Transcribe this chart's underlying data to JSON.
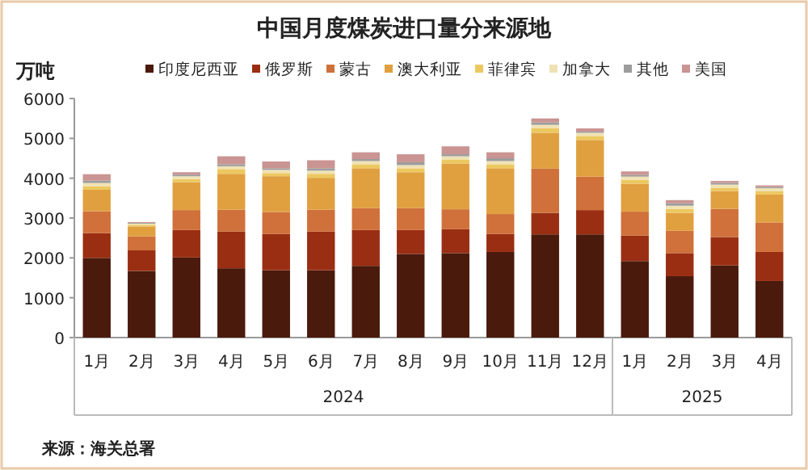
{
  "chart_data": {
    "type": "bar",
    "stacked": true,
    "title": "中国月度煤炭进口量分来源地",
    "ylabel": "万吨",
    "categories": [
      "1月",
      "2月",
      "3月",
      "4月",
      "5月",
      "6月",
      "7月",
      "8月",
      "9月",
      "10月",
      "11月",
      "12月",
      "1月",
      "2月",
      "3月",
      "4月"
    ],
    "series": [
      {
        "name": "印度尼西亚",
        "color": "#4a1a0c",
        "values": [
          2000,
          1670,
          2010,
          1740,
          1690,
          1690,
          1800,
          2100,
          2120,
          2150,
          2590,
          2590,
          1920,
          1540,
          1810,
          1420
        ]
      },
      {
        "name": "俄罗斯",
        "color": "#9a2e12",
        "values": [
          620,
          520,
          690,
          920,
          910,
          970,
          900,
          600,
          600,
          450,
          540,
          610,
          640,
          580,
          710,
          730
        ]
      },
      {
        "name": "蒙古",
        "color": "#d0703a",
        "values": [
          550,
          350,
          500,
          550,
          550,
          550,
          550,
          550,
          500,
          500,
          1110,
          840,
          600,
          560,
          710,
          740
        ]
      },
      {
        "name": "澳大利亚",
        "color": "#e0a040",
        "values": [
          540,
          250,
          700,
          900,
          900,
          800,
          1000,
          900,
          1150,
          1150,
          900,
          920,
          700,
          450,
          450,
          700
        ]
      },
      {
        "name": "菲律宾",
        "color": "#ecc860",
        "values": [
          90,
          40,
          80,
          120,
          80,
          100,
          100,
          100,
          100,
          100,
          120,
          100,
          100,
          100,
          80,
          80
        ]
      },
      {
        "name": "加拿大",
        "color": "#efe2b4",
        "values": [
          80,
          30,
          70,
          70,
          80,
          80,
          80,
          80,
          80,
          80,
          80,
          80,
          80,
          80,
          80,
          80
        ]
      },
      {
        "name": "其他",
        "color": "#9c9c9c",
        "values": [
          60,
          20,
          40,
          50,
          40,
          60,
          50,
          70,
          50,
          70,
          60,
          30,
          40,
          60,
          40,
          30
        ]
      },
      {
        "name": "美国",
        "color": "#c99492",
        "values": [
          160,
          20,
          60,
          200,
          170,
          200,
          170,
          200,
          200,
          150,
          100,
          80,
          90,
          80,
          50,
          40
        ]
      }
    ],
    "ylim": [
      0,
      6000
    ],
    "yticks": [
      0,
      1000,
      2000,
      3000,
      4000,
      5000,
      6000
    ],
    "legend": "top",
    "annotations": [
      "2024",
      "2025",
      "来源：海关总署"
    ]
  }
}
